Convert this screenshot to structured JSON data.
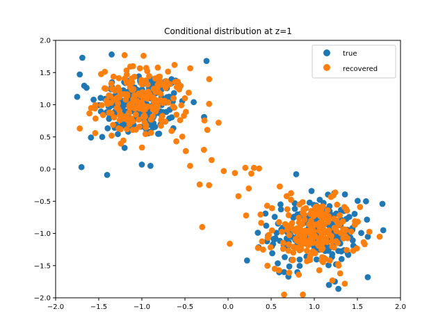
{
  "chart_data": {
    "type": "scatter",
    "title": "Conditional distribution at z=1",
    "xlabel": "",
    "ylabel": "",
    "xlim": [
      -2.0,
      2.0
    ],
    "ylim": [
      -2.0,
      2.0
    ],
    "xticks": [
      "−2.0",
      "−1.5",
      "−1.0",
      "−0.5",
      "0.0",
      "0.5",
      "1.0",
      "1.5",
      "2.0"
    ],
    "yticks": [
      "−2.0",
      "−1.5",
      "−1.0",
      "−0.5",
      "0.0",
      "0.5",
      "1.0",
      "1.5",
      "2.0"
    ],
    "grid": false,
    "legend_position": "top-right",
    "series": [
      {
        "name": "true",
        "color": "#1f77b4",
        "description": "two Gaussian clusters, centered near (-1.0, 1.0) and (1.0, -1.0), std approx 0.25",
        "points": [
          [
            -1.72,
            1.47
          ],
          [
            -1.69,
            1.73
          ],
          [
            -1.7,
            0.03
          ],
          [
            -1.0,
            0.07
          ],
          [
            -0.9,
            0.05
          ],
          [
            -0.25,
            1.68
          ],
          [
            -1.46,
            0.5
          ],
          [
            -1.59,
            0.49
          ],
          [
            -1.35,
            1.78
          ],
          [
            -1.2,
            0.33
          ],
          [
            0.65,
            -1.6
          ],
          [
            0.7,
            -1.67
          ],
          [
            0.79,
            -0.08
          ],
          [
            1.6,
            -0.5
          ],
          [
            1.62,
            -1.68
          ],
          [
            1.79,
            -0.54
          ],
          [
            1.8,
            -0.95
          ],
          [
            1.28,
            -1.86
          ],
          [
            0.22,
            -1.42
          ],
          [
            1.17,
            -1.8
          ]
        ],
        "cluster_centers": [
          [
            -1.0,
            1.0
          ],
          [
            1.0,
            -1.0
          ]
        ],
        "cluster_std": 0.26
      },
      {
        "name": "recovered",
        "color": "#ff7f0e",
        "description": "two clusters plus a bridge of points between them",
        "points": [
          [
            -1.72,
            0.63
          ],
          [
            -1.2,
            1.77
          ],
          [
            -0.98,
            1.76
          ],
          [
            -1.35,
            0.52
          ],
          [
            -0.6,
            0.43
          ],
          [
            -0.49,
            0.28
          ],
          [
            -0.44,
            0.05
          ],
          [
            -0.33,
            -0.24
          ],
          [
            -0.28,
            0.3
          ],
          [
            -0.24,
            0.61
          ],
          [
            -0.19,
            0.14
          ],
          [
            -0.11,
            0.72
          ],
          [
            -0.3,
            -0.9
          ],
          [
            -0.05,
            -0.03
          ],
          [
            0.08,
            -0.06
          ],
          [
            0.12,
            -0.42
          ],
          [
            0.2,
            0.02
          ],
          [
            0.3,
            0.02
          ],
          [
            0.36,
            0.01
          ],
          [
            0.27,
            -0.07
          ],
          [
            0.24,
            -0.3
          ],
          [
            -0.22,
            -0.25
          ],
          [
            0.02,
            -1.16
          ],
          [
            0.21,
            -0.72
          ],
          [
            0.65,
            -1.95
          ],
          [
            0.71,
            -1.61
          ],
          [
            1.21,
            -1.73
          ],
          [
            1.3,
            -1.62
          ],
          [
            0.68,
            -0.42
          ],
          [
            0.6,
            -0.27
          ]
        ],
        "cluster_centers": [
          [
            -1.0,
            1.05
          ],
          [
            1.0,
            -1.0
          ]
        ],
        "cluster_std": 0.26
      }
    ]
  }
}
